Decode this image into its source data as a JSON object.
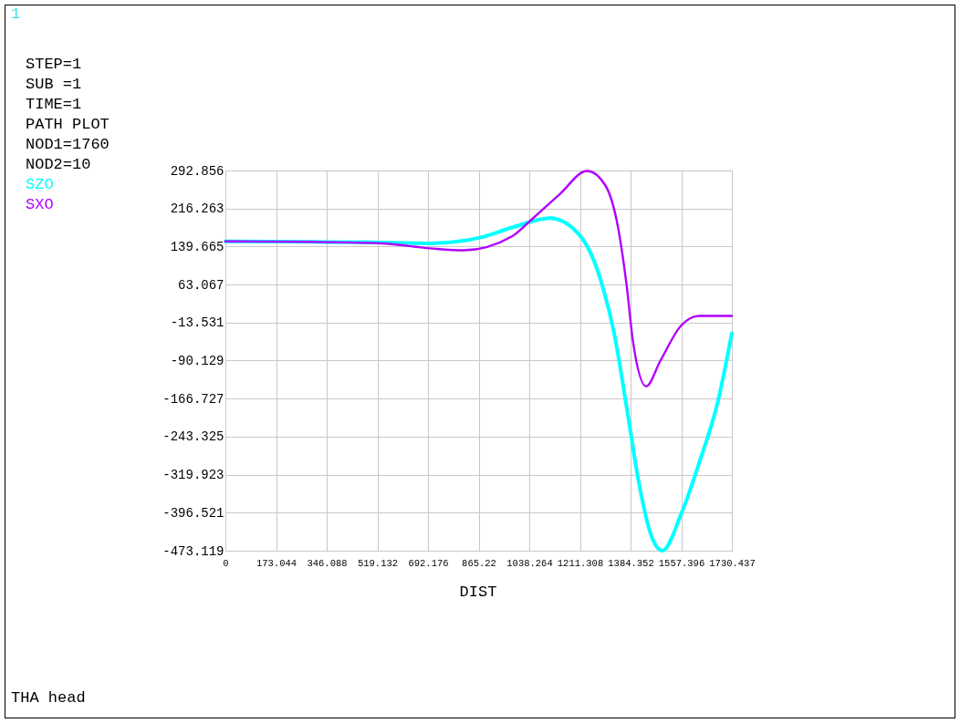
{
  "chart_data": {
    "type": "line",
    "xlabel": "DIST",
    "annotations": [
      "1",
      "STEP=1",
      "SUB =1",
      "TIME=1",
      "PATH PLOT",
      "NOD1=1760",
      "NOD2=10",
      "THA head"
    ],
    "xlim": [
      0,
      1730.437
    ],
    "xticks": [
      0,
      173.044,
      346.088,
      519.132,
      692.176,
      865.22,
      1038.264,
      1211.308,
      1384.352,
      1557.396,
      1730.437
    ],
    "ylim": [
      -473.119,
      292.856
    ],
    "yticks": [
      -473.119,
      -396.521,
      -319.923,
      -243.325,
      -166.727,
      -90.129,
      -13.531,
      63.067,
      139.665,
      216.263,
      292.856
    ],
    "grid": true,
    "marker": "none",
    "line_style": "solid",
    "series": [
      {
        "name": "SZO",
        "color": "#00ffff",
        "x": [
          0,
          300,
          500,
          700,
          873,
          979,
          1110,
          1215,
          1288,
          1329,
          1371,
          1413,
          1454,
          1493,
          1558,
          1620,
          1683,
          1730.437
        ],
        "values": [
          150,
          149,
          148,
          146,
          158,
          178,
          197,
          159,
          61,
          -37,
          -184,
          -337,
          -441,
          -473,
          -398,
          -294,
          -172,
          -35
        ]
      },
      {
        "name": "SXO",
        "color": "#b000ff",
        "x": [
          0,
          300,
          535,
          700,
          814,
          979,
          1048,
          1142,
          1236,
          1298,
          1340,
          1371,
          1392,
          1438,
          1485,
          1558,
          1620,
          1730.437
        ],
        "values": [
          150,
          149,
          146,
          136,
          132,
          160,
          195,
          245,
          292,
          263,
          183,
          61,
          -49,
          -142,
          -92,
          -19,
          0,
          0
        ]
      }
    ]
  }
}
